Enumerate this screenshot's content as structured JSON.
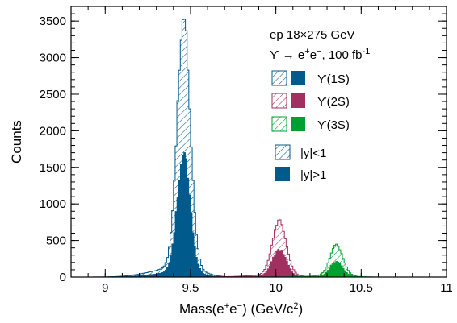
{
  "colors": {
    "upsilon1s": "#005a8c",
    "upsilon2s": "#a03060",
    "upsilon3s": "#00a030"
  },
  "chart_data": {
    "type": "histogram",
    "xlabel_main": "Mass(e",
    "xlabel_sup1": "+",
    "xlabel_mid": "e",
    "xlabel_sup2": "−",
    "xlabel_unit": ") (GeV/c",
    "xlabel_sup3": "2",
    "xlabel_end": ")",
    "ylabel": "Counts",
    "xlim": [
      8.8,
      11.0
    ],
    "ylim": [
      0,
      3700
    ],
    "xticks": [
      "9",
      "9.5",
      "10",
      "10.5",
      "11"
    ],
    "xtick_values": [
      9.0,
      9.5,
      10.0,
      10.5,
      11.0
    ],
    "yticks": [
      "0",
      "500",
      "1000",
      "1500",
      "2000",
      "2500",
      "3000",
      "3500"
    ],
    "ytick_values": [
      0,
      500,
      1000,
      1500,
      2000,
      2500,
      3000,
      3500
    ],
    "annotation_line1": "ep 18×275 GeV",
    "annotation_line2_main": "ϒ → e",
    "annotation_line2_sup1": "+",
    "annotation_line2_mid": "e",
    "annotation_line2_sup2": "−",
    "annotation_line2_tail": ", 100 fb",
    "annotation_line2_sup3": "-1",
    "legend": [
      {
        "label": "ϒ(1S)",
        "color_key": "upsilon1s"
      },
      {
        "label": "ϒ(2S)",
        "color_key": "upsilon2s"
      },
      {
        "label": "ϒ(3S)",
        "color_key": "upsilon3s"
      }
    ],
    "legend_styles": [
      {
        "label": "|y|<1",
        "style": "hatched"
      },
      {
        "label": "|y|>1",
        "style": "filled"
      }
    ],
    "bin_width": 0.01,
    "series": [
      {
        "name": "ϒ(1S)",
        "color_key": "upsilon1s",
        "peak": 9.46,
        "amp_hatched": 3380,
        "amp_filled": 1610,
        "sigma_core": 0.038,
        "tail_frac": 0.045,
        "tail_sigma": 0.16
      },
      {
        "name": "ϒ(2S)",
        "color_key": "upsilon2s",
        "peak": 10.02,
        "amp_hatched": 740,
        "amp_filled": 365,
        "sigma_core": 0.04,
        "tail_frac": 0.045,
        "tail_sigma": 0.16
      },
      {
        "name": "ϒ(3S)",
        "color_key": "upsilon3s",
        "peak": 10.355,
        "amp_hatched": 420,
        "amp_filled": 200,
        "sigma_core": 0.038,
        "tail_frac": 0.045,
        "tail_sigma": 0.16
      }
    ]
  }
}
